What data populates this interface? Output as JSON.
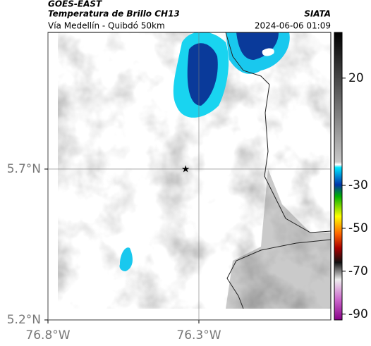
{
  "chart_data": {
    "type": "map",
    "title": "GOES-EAST",
    "subtitle": "Temperatura de Brillo CH13",
    "source": "SIATA",
    "route": "Vía Medellín - Quibdó 50km",
    "datetime": "2024-06-06 01:09",
    "xlim": [
      -76.8,
      -75.863
    ],
    "ylim": [
      5.2,
      6.153
    ],
    "xticks": [
      {
        "value": -76.8,
        "label": "76.8°W"
      },
      {
        "value": -76.3,
        "label": "76.3°W"
      }
    ],
    "yticks": [
      {
        "value": 5.2,
        "label": "5.2°N"
      },
      {
        "value": 5.7,
        "label": "5.7°N"
      }
    ],
    "marker": {
      "lon": -76.344,
      "lat": 5.7
    },
    "colorbar": {
      "lim": [
        -92.7,
        41.3
      ],
      "ticks": [
        20,
        -30,
        -50,
        -70,
        -90
      ]
    }
  }
}
